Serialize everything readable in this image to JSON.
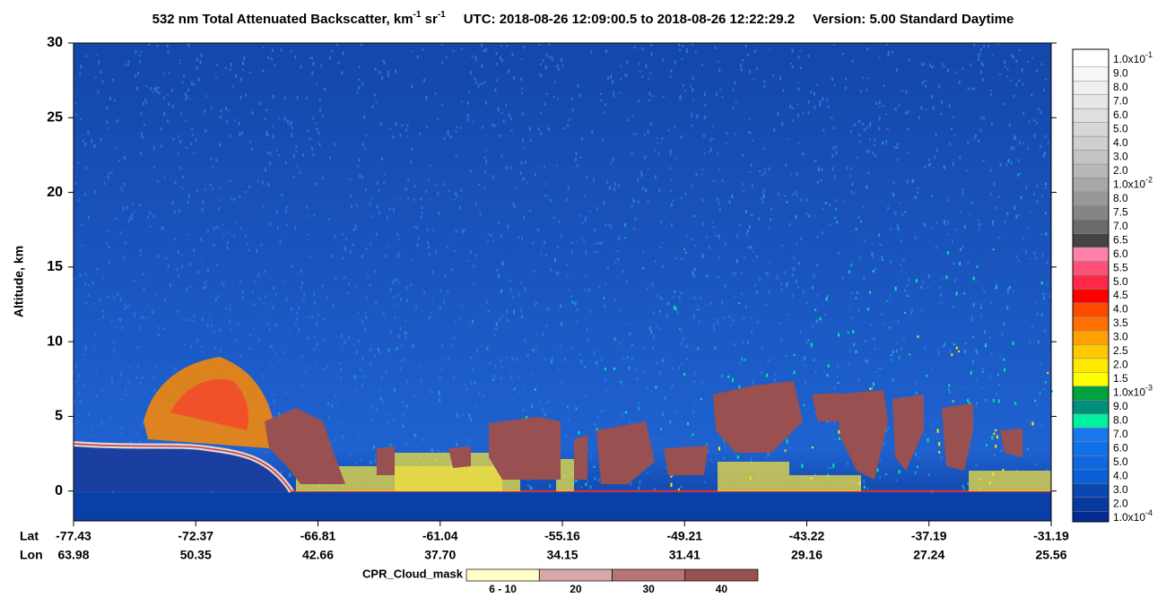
{
  "chart_data": {
    "type": "curtain",
    "title": {
      "main": "532 nm Total Attenuated Backscatter, km",
      "sup1": "-1",
      "mid": " sr",
      "sup2": "-1",
      "time": "UTC:  2018-08-26 12:09:00.5  to  2018-08-26 12:22:29.2",
      "version": "Version: 5.00  Standard  Daytime"
    },
    "ylabel": "Altitude, km",
    "ylim": [
      -2,
      30
    ],
    "yticks": [
      0,
      5,
      10,
      15,
      20,
      25,
      30
    ],
    "x_row_labels": {
      "lat": "Lat",
      "lon": "Lon"
    },
    "x_labels": {
      "lat": [
        "-77.43",
        "-72.37",
        "-66.81",
        "-61.04",
        "-55.16",
        "-49.21",
        "-43.22",
        "-37.19",
        "-31.19"
      ],
      "lon": [
        "63.98",
        "50.35",
        "42.66",
        "37.70",
        "34.15",
        "31.41",
        "29.16",
        "27.24",
        "25.56"
      ]
    },
    "colorbar": [
      {
        "label": "1.0x10",
        "exp": "-1",
        "color": "#ffffff"
      },
      {
        "label": "9.0",
        "color": "#f7f7f7"
      },
      {
        "label": "8.0",
        "color": "#efefef"
      },
      {
        "label": "7.0",
        "color": "#e7e7e7"
      },
      {
        "label": "6.0",
        "color": "#dfdfdf"
      },
      {
        "label": "5.0",
        "color": "#d7d7d7"
      },
      {
        "label": "4.0",
        "color": "#cfcfcf"
      },
      {
        "label": "3.0",
        "color": "#c4c4c4"
      },
      {
        "label": "2.0",
        "color": "#b8b8b8"
      },
      {
        "label": "1.0x10",
        "exp": "-2",
        "color": "#a8a8a8"
      },
      {
        "label": "8.0",
        "color": "#989898"
      },
      {
        "label": "7.5",
        "color": "#858585"
      },
      {
        "label": "7.0",
        "color": "#6a6a6a"
      },
      {
        "label": "6.5",
        "color": "#444444"
      },
      {
        "label": "6.0",
        "color": "#ff80a8"
      },
      {
        "label": "5.5",
        "color": "#ff5078"
      },
      {
        "label": "5.0",
        "color": "#ff2848"
      },
      {
        "label": "4.5",
        "color": "#ff0000"
      },
      {
        "label": "4.0",
        "color": "#ff4800"
      },
      {
        "label": "3.5",
        "color": "#ff7000"
      },
      {
        "label": "3.0",
        "color": "#ffa000"
      },
      {
        "label": "2.5",
        "color": "#ffc800"
      },
      {
        "label": "2.0",
        "color": "#ffe800"
      },
      {
        "label": "1.5",
        "color": "#ffff00"
      },
      {
        "label": "1.0x10",
        "exp": "-3",
        "color": "#00a040"
      },
      {
        "label": "9.0",
        "color": "#00907a"
      },
      {
        "label": "8.0",
        "color": "#00f0a0"
      },
      {
        "label": "7.0",
        "color": "#1878f0"
      },
      {
        "label": "6.0",
        "color": "#1070e8"
      },
      {
        "label": "5.0",
        "color": "#1068e0"
      },
      {
        "label": "4.0",
        "color": "#0a60d8"
      },
      {
        "label": "3.0",
        "color": "#0848b0"
      },
      {
        "label": "2.0",
        "color": "#063aa0"
      },
      {
        "label": "1.0x10",
        "exp": "-4",
        "color": "#042c90"
      }
    ],
    "cpr_legend": {
      "title": "CPR_Cloud_mask",
      "entries": [
        {
          "label": "6 - 10",
          "color": "#ffffc8"
        },
        {
          "label": "20",
          "color": "#d8a8a8"
        },
        {
          "label": "30",
          "color": "#b87474"
        },
        {
          "label": "40",
          "color": "#985050"
        }
      ]
    }
  }
}
